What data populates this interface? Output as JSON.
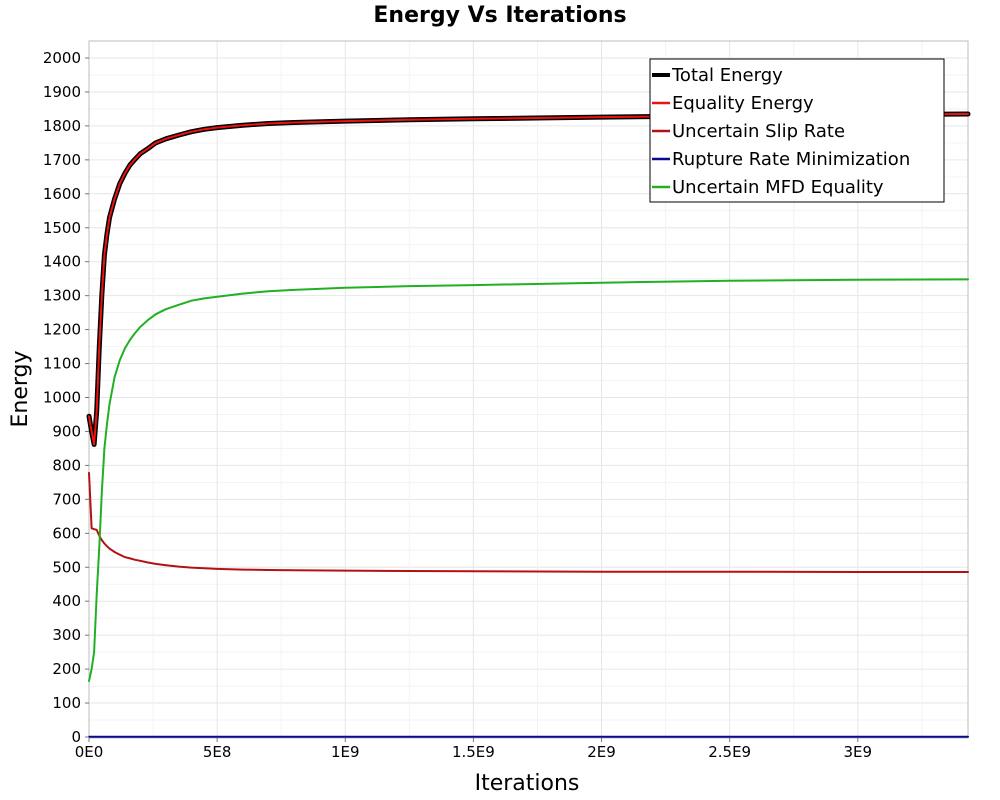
{
  "chart_data": {
    "type": "line",
    "title": "Energy Vs Iterations",
    "xlabel": "Iterations",
    "ylabel": "Energy",
    "xlim": [
      0,
      3430000000
    ],
    "ylim": [
      0,
      2050
    ],
    "grid": true,
    "legend_position": "top-right",
    "x_ticks": [
      {
        "value": 0,
        "label": "0E0"
      },
      {
        "value": 500000000,
        "label": "5E8"
      },
      {
        "value": 1000000000,
        "label": "1E9"
      },
      {
        "value": 1500000000,
        "label": "1.5E9"
      },
      {
        "value": 2000000000,
        "label": "2E9"
      },
      {
        "value": 2500000000,
        "label": "2.5E9"
      },
      {
        "value": 3000000000,
        "label": "3E9"
      }
    ],
    "y_ticks": [
      {
        "value": 0,
        "label": "0"
      },
      {
        "value": 100,
        "label": "100"
      },
      {
        "value": 200,
        "label": "200"
      },
      {
        "value": 300,
        "label": "300"
      },
      {
        "value": 400,
        "label": "400"
      },
      {
        "value": 500,
        "label": "500"
      },
      {
        "value": 600,
        "label": "600"
      },
      {
        "value": 700,
        "label": "700"
      },
      {
        "value": 800,
        "label": "800"
      },
      {
        "value": 900,
        "label": "900"
      },
      {
        "value": 1000,
        "label": "1000"
      },
      {
        "value": 1100,
        "label": "1100"
      },
      {
        "value": 1200,
        "label": "1200"
      },
      {
        "value": 1300,
        "label": "1300"
      },
      {
        "value": 1400,
        "label": "1400"
      },
      {
        "value": 1500,
        "label": "1500"
      },
      {
        "value": 1600,
        "label": "1600"
      },
      {
        "value": 1700,
        "label": "1700"
      },
      {
        "value": 1800,
        "label": "1800"
      },
      {
        "value": 1900,
        "label": "1900"
      },
      {
        "value": 2000,
        "label": "2000"
      }
    ],
    "x": [
      0,
      10000000,
      20000000,
      30000000,
      40000000,
      50000000,
      60000000,
      70000000,
      80000000,
      100000000,
      120000000,
      140000000,
      160000000,
      180000000,
      200000000,
      230000000,
      260000000,
      300000000,
      350000000,
      400000000,
      450000000,
      500000000,
      600000000,
      700000000,
      800000000,
      1000000000,
      1250000000,
      1500000000,
      2000000000,
      2500000000,
      3000000000,
      3430000000
    ],
    "series": [
      {
        "name": "Total Energy",
        "color": "#000000",
        "width": 5,
        "values": [
          945,
          900,
          862,
          960,
          1150,
          1300,
          1420,
          1480,
          1530,
          1585,
          1630,
          1660,
          1685,
          1702,
          1718,
          1733,
          1750,
          1762,
          1773,
          1783,
          1790,
          1795,
          1802,
          1807,
          1810,
          1814,
          1818,
          1821,
          1826,
          1830,
          1833,
          1835
        ]
      },
      {
        "name": "Equality Energy",
        "color": "#ee1111",
        "width": 2,
        "values": [
          945,
          900,
          862,
          960,
          1150,
          1300,
          1420,
          1480,
          1530,
          1585,
          1630,
          1660,
          1685,
          1702,
          1718,
          1733,
          1750,
          1762,
          1773,
          1783,
          1790,
          1795,
          1802,
          1807,
          1810,
          1814,
          1818,
          1821,
          1826,
          1830,
          1833,
          1835
        ]
      },
      {
        "name": "Uncertain Slip Rate",
        "color": "#b41212",
        "width": 2,
        "values": [
          778,
          615,
          612,
          610,
          593,
          580,
          570,
          562,
          555,
          545,
          537,
          530,
          526,
          522,
          519,
          514,
          510,
          506,
          502,
          499,
          497,
          495,
          493,
          492,
          491,
          490,
          489,
          488,
          487,
          487,
          486,
          486
        ]
      },
      {
        "name": "Rupture Rate Minimization",
        "color": "#0a0a90",
        "width": 2,
        "values": [
          1,
          1,
          1,
          1,
          1,
          1,
          1,
          1,
          1,
          1,
          1,
          1,
          1,
          1,
          1,
          1,
          1,
          1,
          1,
          1,
          1,
          1,
          1,
          1,
          1,
          1,
          1,
          1,
          1,
          1,
          1,
          1
        ]
      },
      {
        "name": "Uncertain MFD Equality",
        "color": "#22b022",
        "width": 2,
        "values": [
          165,
          200,
          250,
          420,
          560,
          720,
          850,
          920,
          980,
          1060,
          1110,
          1145,
          1170,
          1190,
          1208,
          1228,
          1245,
          1260,
          1273,
          1285,
          1292,
          1297,
          1306,
          1313,
          1317,
          1323,
          1328,
          1331,
          1338,
          1344,
          1347,
          1348
        ]
      }
    ]
  }
}
